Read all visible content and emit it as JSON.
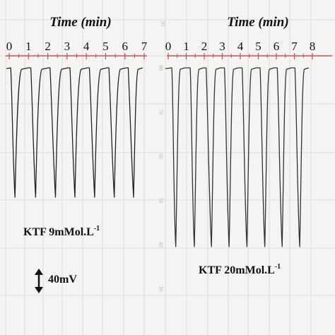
{
  "chart_data": [
    {
      "type": "line",
      "title": "",
      "xlabel": "Time (min)",
      "ylabel": "",
      "xticks": [
        "0",
        "1",
        "2",
        "3",
        "4",
        "5",
        "6",
        "7"
      ],
      "xlim": [
        0,
        7
      ],
      "scale_bar": {
        "label": "40mV"
      },
      "annotation_main": "KTF 9mMol.L",
      "annotation_sup": "-1",
      "series": [
        {
          "cycles": [
            {
              "drop_start": 0.08,
              "min_time": 0.3,
              "plateau_time": 0.98
            },
            {
              "drop_start": 1.12,
              "min_time": 1.37,
              "plateau_time": 2.02
            },
            {
              "drop_start": 2.12,
              "min_time": 2.4,
              "plateau_time": 3.03
            },
            {
              "drop_start": 3.15,
              "min_time": 3.41,
              "plateau_time": 4.05
            },
            {
              "drop_start": 4.16,
              "min_time": 4.43,
              "plateau_time": 5.07
            },
            {
              "drop_start": 5.17,
              "min_time": 5.45,
              "plateau_time": 6.07
            },
            {
              "drop_start": 6.17,
              "min_time": 6.45,
              "plateau_time": 6.92
            }
          ],
          "plateau_mV": 80,
          "minimum_mV": 49
        }
      ]
    },
    {
      "type": "line",
      "title": "",
      "xlabel": "Time (min)",
      "ylabel": "",
      "xticks": [
        "0",
        "1",
        "2",
        "3",
        "4",
        "5",
        "6",
        "7",
        "8"
      ],
      "xlim": [
        0,
        8
      ],
      "y_ticks": [
        "80",
        "70",
        "60",
        "50",
        "40",
        "30"
      ],
      "y_top_value": "30",
      "annotation_main": "KTF 20mMol.L",
      "annotation_sup": "-1",
      "series": [
        {
          "cycles": [
            {
              "drop_start": 0.2,
              "min_time": 0.42,
              "plateau_time": 0.92
            },
            {
              "drop_start": 1.22,
              "min_time": 1.45,
              "plateau_time": 1.95
            },
            {
              "drop_start": 2.1,
              "min_time": 2.4,
              "plateau_time": 2.9
            },
            {
              "drop_start": 3.12,
              "min_time": 3.38,
              "plateau_time": 3.88
            },
            {
              "drop_start": 4.1,
              "min_time": 4.37,
              "plateau_time": 4.87
            },
            {
              "drop_start": 5.1,
              "min_time": 5.36,
              "plateau_time": 5.86
            },
            {
              "drop_start": 6.05,
              "min_time": 6.32,
              "plateau_time": 6.82
            },
            {
              "drop_start": 7.03,
              "min_time": 7.3,
              "plateau_time": 7.8
            }
          ],
          "plateau_mV": 80,
          "minimum_mV": 39.5
        }
      ]
    }
  ]
}
